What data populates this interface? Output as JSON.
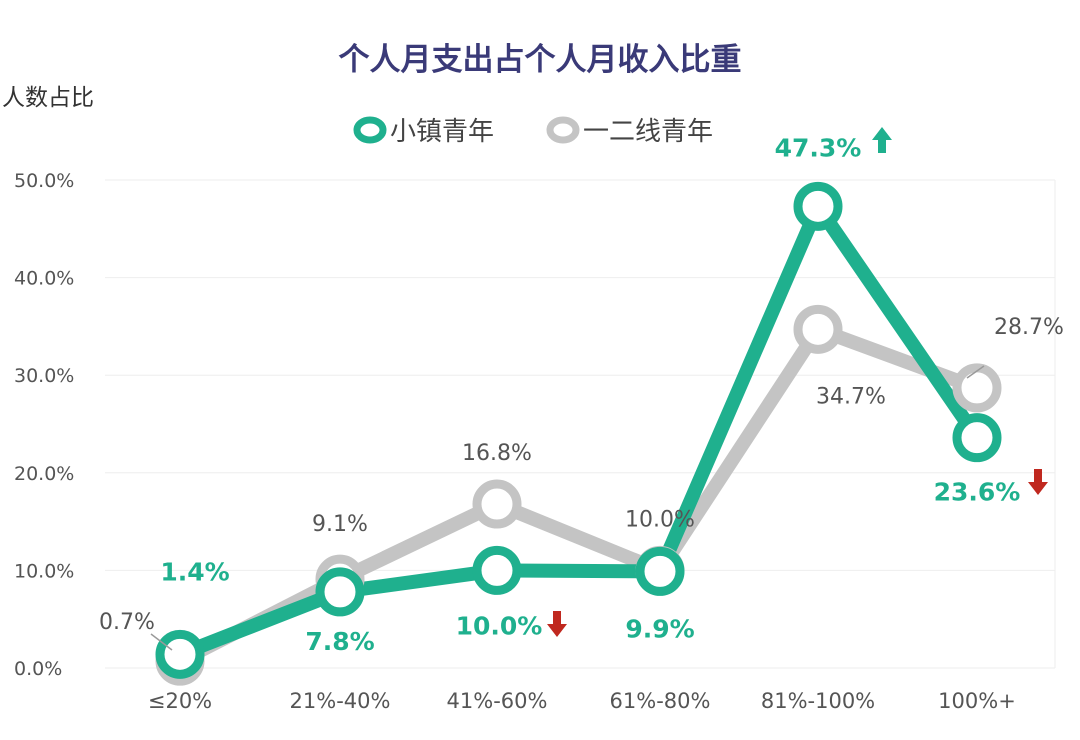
{
  "chart_data": {
    "type": "line",
    "title": "个人月支出占个人月收入比重",
    "ylabel": "人数占比",
    "xlabel": "",
    "categories": [
      "≤20%",
      "21%-40%",
      "41%-60%",
      "61%-80%",
      "81%-100%",
      "100%+"
    ],
    "y_ticks": [
      "0.0%",
      "10.0%",
      "20.0%",
      "30.0%",
      "40.0%",
      "50.0%"
    ],
    "ylim": [
      0,
      50
    ],
    "grid": true,
    "legend_position": "top-center",
    "series": [
      {
        "name": "小镇青年",
        "color": "#1fb08e",
        "values": [
          1.4,
          7.8,
          10.0,
          9.9,
          47.3,
          23.6
        ],
        "labels": [
          "1.4%",
          "7.8%",
          "10.0%",
          "9.9%",
          "47.3%",
          "23.6%"
        ]
      },
      {
        "name": "一二线青年",
        "color": "#c4c4c4",
        "values": [
          0.7,
          9.1,
          16.8,
          10.0,
          34.7,
          28.7
        ],
        "labels": [
          "0.7%",
          "9.1%",
          "16.8%",
          "10.0%",
          "34.7%",
          "28.7%"
        ]
      }
    ],
    "annotations": [
      {
        "target": "小镇青年",
        "index": 2,
        "icon": "down-arrow-icon",
        "color": "#c0281f"
      },
      {
        "target": "小镇青年",
        "index": 4,
        "icon": "up-arrow-icon",
        "color": "#1fb08e"
      },
      {
        "target": "小镇青年",
        "index": 5,
        "icon": "down-arrow-icon",
        "color": "#c0281f"
      }
    ]
  }
}
